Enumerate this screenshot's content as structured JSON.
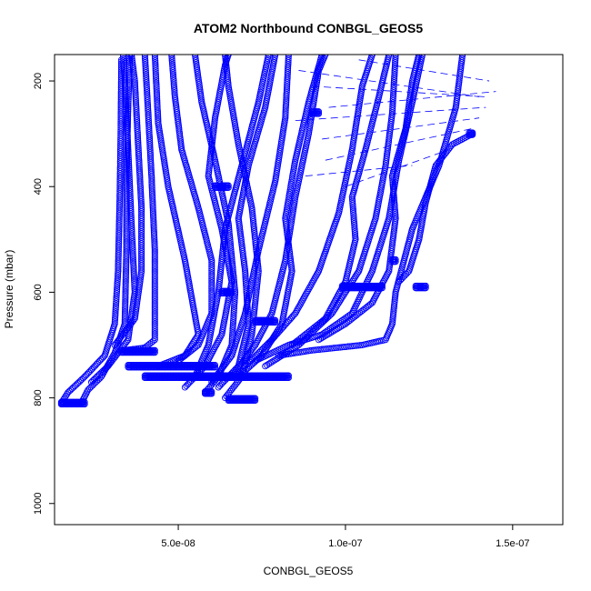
{
  "chart_data": {
    "type": "scatter",
    "title": "ATOM2 Northbound CONBGL_GEOS5",
    "xlabel": "CONBGL_GEOS5",
    "ylabel": "Pressure (mbar)",
    "xlim": [
      1.3e-08,
      1.65e-07
    ],
    "ylim": [
      1040,
      150
    ],
    "y_reversed": true,
    "x_ticks": [
      5e-08,
      1e-07,
      1.5e-07
    ],
    "x_tick_labels": [
      "5.0e-08",
      "1.0e-07",
      "1.5e-07"
    ],
    "y_ticks": [
      200,
      400,
      600,
      800,
      1000
    ],
    "y_tick_labels": [
      "200",
      "400",
      "600",
      "800",
      "1000"
    ],
    "marker": "open-circle",
    "color": "#0000ff",
    "grid": false,
    "legend": "none",
    "profiles": [
      [
        [
          1.5e-08,
          810
        ],
        [
          1.7e-08,
          790
        ],
        [
          2.2e-08,
          760
        ],
        [
          2.8e-08,
          720
        ],
        [
          3.1e-08,
          660
        ],
        [
          3.2e-08,
          560
        ],
        [
          3.25e-08,
          420
        ],
        [
          3.28e-08,
          300
        ],
        [
          3.3e-08,
          160
        ]
      ],
      [
        [
          2.1e-08,
          810
        ],
        [
          2.3e-08,
          785
        ],
        [
          2.7e-08,
          760
        ],
        [
          3.1e-08,
          715
        ],
        [
          3.4e-08,
          660
        ],
        [
          3.45e-08,
          520
        ],
        [
          3.45e-08,
          380
        ],
        [
          3.5e-08,
          250
        ],
        [
          3.55e-08,
          150
        ]
      ],
      [
        [
          3.4e-08,
          710
        ],
        [
          4e-08,
          705
        ],
        [
          4.3e-08,
          690
        ],
        [
          4.3e-08,
          520
        ],
        [
          4.2e-08,
          380
        ],
        [
          4.1e-08,
          260
        ],
        [
          4e-08,
          150
        ]
      ],
      [
        [
          4.4e-08,
          740
        ],
        [
          5.2e-08,
          720
        ],
        [
          5.6e-08,
          680
        ],
        [
          5.2e-08,
          540
        ],
        [
          4.7e-08,
          400
        ],
        [
          4.4e-08,
          280
        ],
        [
          4.3e-08,
          150
        ]
      ],
      [
        [
          3.1e-08,
          700
        ],
        [
          3.7e-08,
          650
        ],
        [
          3.9e-08,
          560
        ],
        [
          3.9e-08,
          440
        ],
        [
          3.8e-08,
          320
        ],
        [
          3.7e-08,
          200
        ],
        [
          3.6e-08,
          150
        ]
      ],
      [
        [
          2.4e-08,
          770
        ],
        [
          2.9e-08,
          740
        ],
        [
          3.5e-08,
          690
        ],
        [
          3.7e-08,
          600
        ],
        [
          3.6e-08,
          470
        ],
        [
          3.5e-08,
          330
        ],
        [
          3.4e-08,
          200
        ],
        [
          3.35e-08,
          150
        ]
      ],
      [
        [
          5.8e-08,
          790
        ],
        [
          6.2e-08,
          760
        ],
        [
          6.6e-08,
          700
        ],
        [
          6.7e-08,
          600
        ],
        [
          6.5e-08,
          470
        ],
        [
          6.1e-08,
          350
        ],
        [
          5.7e-08,
          240
        ],
        [
          5.5e-08,
          150
        ]
      ],
      [
        [
          6.4e-08,
          800
        ],
        [
          6.9e-08,
          760
        ],
        [
          7.2e-08,
          680
        ],
        [
          7.4e-08,
          560
        ],
        [
          7.2e-08,
          440
        ],
        [
          6.8e-08,
          320
        ],
        [
          6.5e-08,
          210
        ],
        [
          6.4e-08,
          150
        ]
      ],
      [
        [
          6e-08,
          770
        ],
        [
          6.6e-08,
          720
        ],
        [
          7e-08,
          640
        ],
        [
          7.4e-08,
          520
        ],
        [
          7.9e-08,
          390
        ],
        [
          8.2e-08,
          270
        ],
        [
          8.3e-08,
          150
        ]
      ],
      [
        [
          5.5e-08,
          760
        ],
        [
          5.9e-08,
          700
        ],
        [
          6.2e-08,
          600
        ],
        [
          6.4e-08,
          480
        ],
        [
          6.9e-08,
          360
        ],
        [
          7.4e-08,
          240
        ],
        [
          7.7e-08,
          150
        ]
      ],
      [
        [
          6.6e-08,
          760
        ],
        [
          7.3e-08,
          700
        ],
        [
          7.8e-08,
          640
        ],
        [
          8.2e-08,
          540
        ],
        [
          8.5e-08,
          420
        ],
        [
          8.9e-08,
          300
        ],
        [
          9.2e-08,
          180
        ],
        [
          9.4e-08,
          150
        ]
      ],
      [
        [
          7e-08,
          740
        ],
        [
          7.8e-08,
          690
        ],
        [
          8.5e-08,
          640
        ],
        [
          9.2e-08,
          560
        ],
        [
          9.8e-08,
          450
        ],
        [
          1.02e-07,
          330
        ],
        [
          1.05e-07,
          210
        ],
        [
          1.08e-07,
          150
        ]
      ],
      [
        [
          7.3e-08,
          730
        ],
        [
          8.3e-08,
          700
        ],
        [
          9.3e-08,
          680
        ],
        [
          1.02e-07,
          640
        ],
        [
          1.08e-07,
          560
        ],
        [
          1.13e-07,
          460
        ],
        [
          1.16e-07,
          350
        ],
        [
          1.2e-07,
          240
        ],
        [
          1.23e-07,
          150
        ]
      ],
      [
        [
          8e-08,
          720
        ],
        [
          9e-08,
          710
        ],
        [
          1.05e-07,
          700
        ],
        [
          1.12e-07,
          690
        ],
        [
          1.14e-07,
          660
        ],
        [
          1.15e-07,
          600
        ],
        [
          1.2e-07,
          480
        ],
        [
          1.28e-07,
          360
        ],
        [
          1.33e-07,
          250
        ],
        [
          1.35e-07,
          150
        ]
      ],
      [
        [
          1.16e-07,
          580
        ],
        [
          1.19e-07,
          560
        ],
        [
          1.22e-07,
          500
        ],
        [
          1.24e-07,
          430
        ],
        [
          1.27e-07,
          360
        ],
        [
          1.32e-07,
          320
        ],
        [
          1.38e-07,
          300
        ]
      ],
      [
        [
          9.2e-08,
          690
        ],
        [
          1e-07,
          660
        ],
        [
          1.08e-07,
          620
        ],
        [
          1.13e-07,
          560
        ],
        [
          1.15e-07,
          460
        ],
        [
          1.14e-07,
          380
        ],
        [
          1.18e-07,
          290
        ],
        [
          1.2e-07,
          200
        ],
        [
          1.22e-07,
          150
        ]
      ],
      [
        [
          6.2e-08,
          780
        ],
        [
          6.8e-08,
          740
        ],
        [
          7.1e-08,
          660
        ],
        [
          7e-08,
          560
        ],
        [
          6.8e-08,
          460
        ],
        [
          7.1e-08,
          360
        ],
        [
          7.6e-08,
          250
        ],
        [
          7.9e-08,
          150
        ]
      ],
      [
        [
          5.2e-08,
          780
        ],
        [
          5.8e-08,
          740
        ],
        [
          6.3e-08,
          680
        ],
        [
          6.6e-08,
          580
        ],
        [
          6.3e-08,
          480
        ],
        [
          5.9e-08,
          380
        ],
        [
          6.1e-08,
          270
        ],
        [
          6.4e-08,
          170
        ],
        [
          6.5e-08,
          150
        ]
      ],
      [
        [
          6.8e-08,
          760
        ],
        [
          7.5e-08,
          720
        ],
        [
          8.1e-08,
          660
        ],
        [
          8.4e-08,
          560
        ],
        [
          8.2e-08,
          460
        ],
        [
          8.5e-08,
          350
        ],
        [
          8.9e-08,
          240
        ],
        [
          9.3e-08,
          150
        ]
      ],
      [
        [
          5e-08,
          730
        ],
        [
          5.6e-08,
          700
        ],
        [
          6e-08,
          640
        ],
        [
          6e-08,
          540
        ],
        [
          5.6e-08,
          440
        ],
        [
          5.1e-08,
          330
        ],
        [
          4.9e-08,
          230
        ],
        [
          4.8e-08,
          150
        ]
      ],
      [
        [
          7.6e-08,
          740
        ],
        [
          8.6e-08,
          700
        ],
        [
          9.6e-08,
          640
        ],
        [
          1.04e-07,
          560
        ],
        [
          1.09e-07,
          460
        ],
        [
          1.12e-07,
          360
        ],
        [
          1.14e-07,
          260
        ],
        [
          1.15e-07,
          150
        ]
      ],
      [
        [
          8.4e-08,
          700
        ],
        [
          9.4e-08,
          650
        ],
        [
          1e-07,
          580
        ],
        [
          1.03e-07,
          500
        ],
        [
          1.02e-07,
          420
        ],
        [
          1.06e-07,
          330
        ],
        [
          1.1e-07,
          230
        ],
        [
          1.13e-07,
          150
        ]
      ]
    ],
    "clusters": [
      {
        "x": [
          4e-08,
          8.3e-08
        ],
        "y": 760
      },
      {
        "x": [
          3.5e-08,
          6.1e-08
        ],
        "y": 740
      },
      {
        "x": [
          3.3e-08,
          4.3e-08
        ],
        "y": 712
      },
      {
        "x": [
          1.5e-08,
          2.2e-08
        ],
        "y": 810
      },
      {
        "x": [
          6.5e-08,
          7.3e-08
        ],
        "y": 803
      },
      {
        "x": [
          9.9e-08,
          1.11e-07
        ],
        "y": 590
      },
      {
        "x": [
          1.21e-07,
          1.24e-07
        ],
        "y": 590
      },
      {
        "x": [
          7.3e-08,
          7.9e-08
        ],
        "y": 655
      },
      {
        "x": [
          6.1e-08,
          6.5e-08
        ],
        "y": 400
      },
      {
        "x": [
          1.14e-07,
          1.15e-07
        ],
        "y": 540
      },
      {
        "x": [
          1.37e-07,
          1.38e-07
        ],
        "y": 300
      },
      {
        "x": [
          9e-08,
          9.2e-08
        ],
        "y": 260
      },
      {
        "x": [
          6.3e-08,
          6.6e-08
        ],
        "y": 600
      },
      {
        "x": [
          5.8e-08,
          6e-08
        ],
        "y": 790
      }
    ],
    "dashed_segments": [
      [
        [
          8.6e-08,
          180
        ],
        [
          1.4e-07,
          230
        ]
      ],
      [
        [
          9e-08,
          210
        ],
        [
          1.42e-07,
          230
        ]
      ],
      [
        [
          9.5e-08,
          250
        ],
        [
          1.45e-07,
          220
        ]
      ],
      [
        [
          8.5e-08,
          275
        ],
        [
          1.42e-07,
          250
        ]
      ],
      [
        [
          9.3e-08,
          310
        ],
        [
          1.4e-07,
          270
        ]
      ],
      [
        [
          9.4e-08,
          350
        ],
        [
          1.38e-07,
          290
        ]
      ],
      [
        [
          8.8e-08,
          380
        ],
        [
          1.2e-07,
          360
        ]
      ],
      [
        [
          1e-07,
          400
        ],
        [
          1.31e-07,
          330
        ]
      ],
      [
        [
          1.04e-07,
          160
        ],
        [
          1.43e-07,
          200
        ]
      ]
    ]
  }
}
